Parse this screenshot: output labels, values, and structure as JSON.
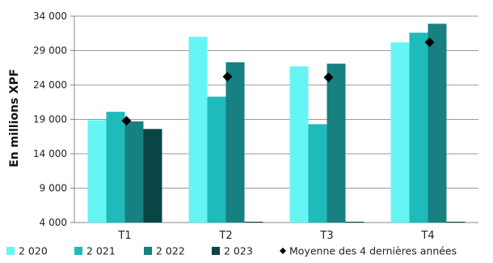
{
  "chart_data": {
    "type": "bar",
    "ylabel": "En millions XPF",
    "ylim": [
      4000,
      34000
    ],
    "yticks": [
      4000,
      9000,
      14000,
      19000,
      24000,
      29000,
      34000
    ],
    "ytick_labels": [
      "4 000",
      "9 000",
      "14 000",
      "19 000",
      "24 000",
      "29 000",
      "34 000"
    ],
    "categories": [
      "T1",
      "T2",
      "T3",
      "T4"
    ],
    "series": [
      {
        "name": "2 020",
        "color": "#66F5F5",
        "values": [
          18900,
          31000,
          26700,
          30200
        ]
      },
      {
        "name": "2 021",
        "color": "#1FBABA",
        "values": [
          20100,
          22300,
          18300,
          31600
        ]
      },
      {
        "name": "2 022",
        "color": "#178080",
        "values": [
          18700,
          27300,
          27100,
          32900
        ]
      },
      {
        "name": "2 023",
        "color": "#0B4444",
        "values": [
          17600,
          null,
          null,
          null
        ]
      }
    ],
    "average": {
      "name": "Moyenne des 4 dernières années",
      "color": "#000000",
      "values": [
        18800,
        25200,
        25100,
        30200
      ]
    },
    "grid": true,
    "legend": "bottom"
  }
}
